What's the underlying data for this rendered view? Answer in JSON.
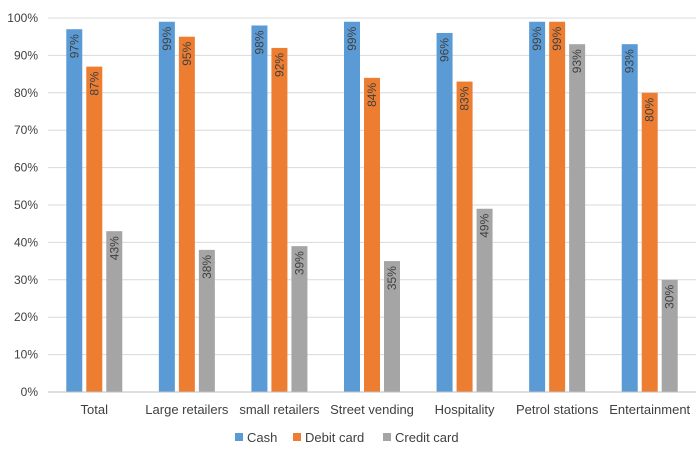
{
  "chart_data": {
    "type": "bar",
    "categories": [
      "Total",
      "Large retailers",
      "small retailers",
      "Street vending",
      "Hospitality",
      "Petrol stations",
      "Entertainment"
    ],
    "series": [
      {
        "name": "Cash",
        "color": "#5b9bd5",
        "values": [
          97,
          99,
          98,
          99,
          96,
          99,
          93
        ],
        "labels": [
          "97%",
          "99%",
          "98%",
          "99%",
          "96%",
          "99%",
          "93%"
        ]
      },
      {
        "name": "Debit card",
        "color": "#ed7d31",
        "values": [
          87,
          95,
          92,
          84,
          83,
          99,
          80
        ],
        "labels": [
          "87%",
          "95%",
          "92%",
          "84%",
          "83%",
          "99%",
          "80%"
        ]
      },
      {
        "name": "Credit card",
        "color": "#a5a5a5",
        "values": [
          43,
          38,
          39,
          35,
          49,
          93,
          30
        ],
        "labels": [
          "43%",
          "38%",
          "39%",
          "35%",
          "49%",
          "93%",
          "30%"
        ]
      }
    ],
    "yticks": [
      "0%",
      "10%",
      "20%",
      "30%",
      "40%",
      "50%",
      "60%",
      "70%",
      "80%",
      "90%",
      "100%"
    ],
    "ylim": [
      0,
      100
    ],
    "grid": true,
    "legend_position": "bottom"
  }
}
